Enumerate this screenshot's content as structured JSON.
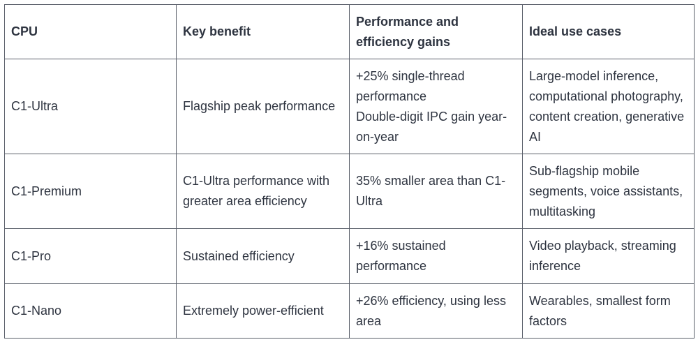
{
  "table": {
    "header": [
      "CPU",
      "Key benefit",
      "Performance and efficiency gains",
      "Ideal use cases"
    ],
    "rows": [
      [
        [
          "C1-Ultra"
        ],
        [
          "Flagship peak performance"
        ],
        [
          "+25% single-thread performance",
          "Double-digit IPC gain year-on-year"
        ],
        [
          "Large-model inference, computational photography, content creation, generative AI"
        ]
      ],
      [
        [
          "C1-Premium"
        ],
        [
          "C1-Ultra performance with greater area efficiency"
        ],
        [
          "35% smaller area than C1-Ultra"
        ],
        [
          "Sub-flagship mobile segments, voice assistants, multitasking"
        ]
      ],
      [
        [
          "C1-Pro"
        ],
        [
          "Sustained efficiency"
        ],
        [
          "+16% sustained performance"
        ],
        [
          "Video playback, streaming inference"
        ]
      ],
      [
        [
          "C1-Nano"
        ],
        [
          "Extremely power-efficient"
        ],
        [
          "+26% efficiency, using less area"
        ],
        [
          "Wearables, smallest form factors"
        ]
      ]
    ]
  }
}
